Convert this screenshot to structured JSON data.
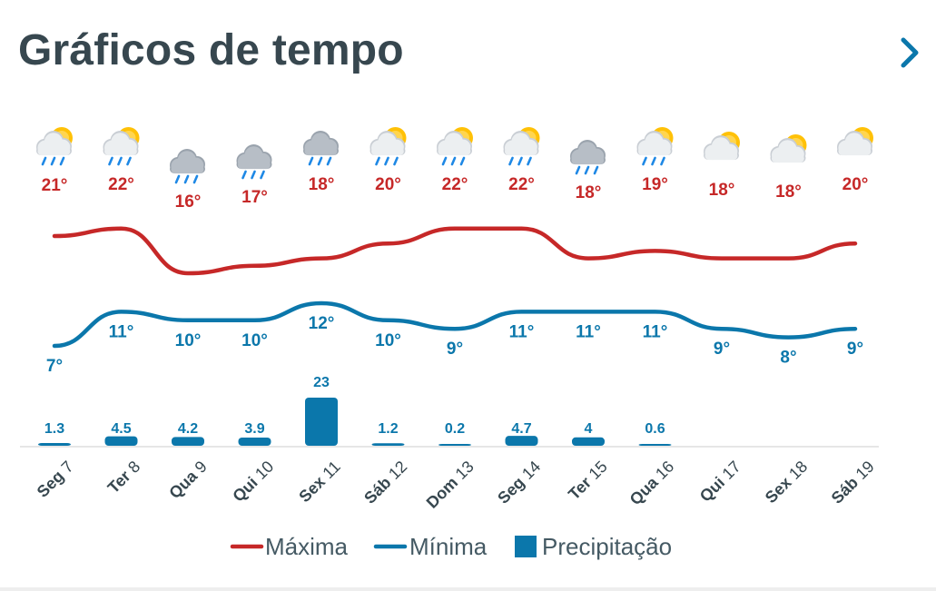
{
  "header": {
    "title": "Gráficos de tempo"
  },
  "icons": {
    "more": "chevron-right-icon"
  },
  "colors": {
    "max": "#c62828",
    "min": "#0b77ab",
    "bar": "#0b77ab",
    "title": "#37474f",
    "chevron": "#0b77ab",
    "axis": "#e6e6e6"
  },
  "chart_data": {
    "type": "line",
    "categories": [
      "Seg 7",
      "Ter 8",
      "Qua 9",
      "Qui 10",
      "Sex 11",
      "Sáb 12",
      "Dom 13",
      "Seg 14",
      "Ter 15",
      "Qua 16",
      "Qui 17",
      "Sex 18",
      "Sáb 19"
    ],
    "weather_icons": [
      "partly-cloudy-rain",
      "partly-cloudy-rain",
      "cloud-rain",
      "cloud-rain",
      "cloud-rain",
      "partly-cloudy-rain",
      "partly-cloudy-rain",
      "partly-cloudy-rain",
      "cloud-rain",
      "partly-cloudy-rain",
      "partly-cloudy",
      "partly-cloudy",
      "partly-cloudy"
    ],
    "series": [
      {
        "name": "Máxima",
        "type": "line",
        "values": [
          21,
          22,
          16,
          17,
          18,
          20,
          22,
          22,
          18,
          19,
          18,
          18,
          20
        ],
        "labels": [
          "21°",
          "22°",
          "16°",
          "17°",
          "18°",
          "20°",
          "22°",
          "22°",
          "18°",
          "19°",
          "18°",
          "18°",
          "20°"
        ]
      },
      {
        "name": "Mínima",
        "type": "line",
        "values": [
          7,
          11,
          10,
          10,
          12,
          10,
          9,
          11,
          11,
          11,
          9,
          8,
          9
        ],
        "labels": [
          "7°",
          "11°",
          "10°",
          "10°",
          "12°",
          "10°",
          "9°",
          "11°",
          "11°",
          "11°",
          "9°",
          "8°",
          "9°"
        ]
      },
      {
        "name": "Precipitação",
        "type": "bar",
        "values": [
          1.3,
          4.5,
          4.2,
          3.9,
          23,
          1.2,
          0.2,
          4.7,
          4,
          0.6,
          null,
          null,
          null
        ],
        "labels": [
          "1.3",
          "4.5",
          "4.2",
          "3.9",
          "23",
          "1.2",
          "0.2",
          "4.7",
          "4",
          "0.6",
          "",
          "",
          ""
        ]
      }
    ],
    "legend_position": "bottom-center",
    "grid": false
  }
}
